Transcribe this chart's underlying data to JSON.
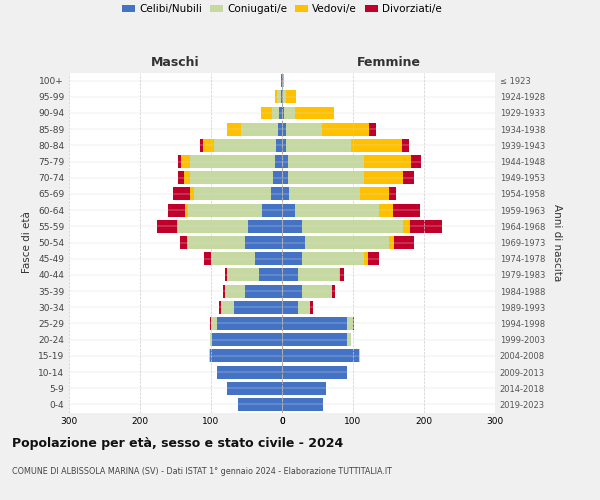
{
  "age_groups": [
    "0-4",
    "5-9",
    "10-14",
    "15-19",
    "20-24",
    "25-29",
    "30-34",
    "35-39",
    "40-44",
    "45-49",
    "50-54",
    "55-59",
    "60-64",
    "65-69",
    "70-74",
    "75-79",
    "80-84",
    "85-89",
    "90-94",
    "95-99",
    "100+"
  ],
  "birth_years": [
    "2019-2023",
    "2014-2018",
    "2009-2013",
    "2004-2008",
    "1999-2003",
    "1994-1998",
    "1989-1993",
    "1984-1988",
    "1979-1983",
    "1974-1978",
    "1969-1973",
    "1964-1968",
    "1959-1963",
    "1954-1958",
    "1949-1953",
    "1944-1948",
    "1939-1943",
    "1934-1938",
    "1929-1933",
    "1924-1928",
    "≤ 1923"
  ],
  "maschi": {
    "celibe": [
      62,
      78,
      92,
      102,
      98,
      92,
      68,
      52,
      32,
      38,
      52,
      48,
      28,
      16,
      12,
      10,
      8,
      6,
      4,
      2,
      1
    ],
    "coniugato": [
      0,
      0,
      0,
      1,
      3,
      8,
      18,
      28,
      45,
      62,
      80,
      98,
      105,
      108,
      118,
      120,
      88,
      52,
      10,
      5,
      0
    ],
    "vedovo": [
      0,
      0,
      0,
      0,
      0,
      0,
      0,
      0,
      0,
      0,
      2,
      2,
      3,
      5,
      8,
      12,
      15,
      20,
      15,
      3,
      0
    ],
    "divorziato": [
      0,
      0,
      0,
      0,
      0,
      2,
      3,
      3,
      3,
      10,
      10,
      28,
      25,
      25,
      8,
      5,
      5,
      0,
      0,
      0,
      0
    ]
  },
  "femmine": {
    "celibe": [
      58,
      62,
      92,
      108,
      92,
      92,
      22,
      28,
      22,
      28,
      32,
      28,
      18,
      10,
      8,
      8,
      5,
      5,
      3,
      2,
      1
    ],
    "coniugato": [
      0,
      0,
      0,
      2,
      5,
      8,
      18,
      42,
      58,
      88,
      118,
      142,
      118,
      100,
      108,
      108,
      92,
      52,
      15,
      3,
      0
    ],
    "vedovo": [
      0,
      0,
      0,
      0,
      0,
      0,
      0,
      1,
      2,
      5,
      8,
      10,
      20,
      40,
      55,
      65,
      72,
      65,
      55,
      15,
      2
    ],
    "divorziato": [
      0,
      0,
      0,
      0,
      0,
      1,
      3,
      3,
      5,
      15,
      28,
      45,
      38,
      10,
      15,
      15,
      10,
      10,
      0,
      0,
      0
    ]
  },
  "colors": {
    "celibe": "#4472C4",
    "coniugato": "#c5d9a0",
    "vedovo": "#ffc000",
    "divorziato": "#c0002a"
  },
  "legend_labels": [
    "Celibi/Nubili",
    "Coniugati/e",
    "Vedovi/e",
    "Divorziati/e"
  ],
  "title": "Popolazione per età, sesso e stato civile - 2024",
  "subtitle": "COMUNE DI ALBISSOLA MARINA (SV) - Dati ISTAT 1° gennaio 2024 - Elaborazione TUTTITALIA.IT",
  "ylabel_left": "Fasce di età",
  "ylabel_right": "Anni di nascita",
  "xlabel_maschi": "Maschi",
  "xlabel_femmine": "Femmine",
  "xlim": 300,
  "bg_color": "#f0f0f0",
  "plot_bg": "#ffffff"
}
